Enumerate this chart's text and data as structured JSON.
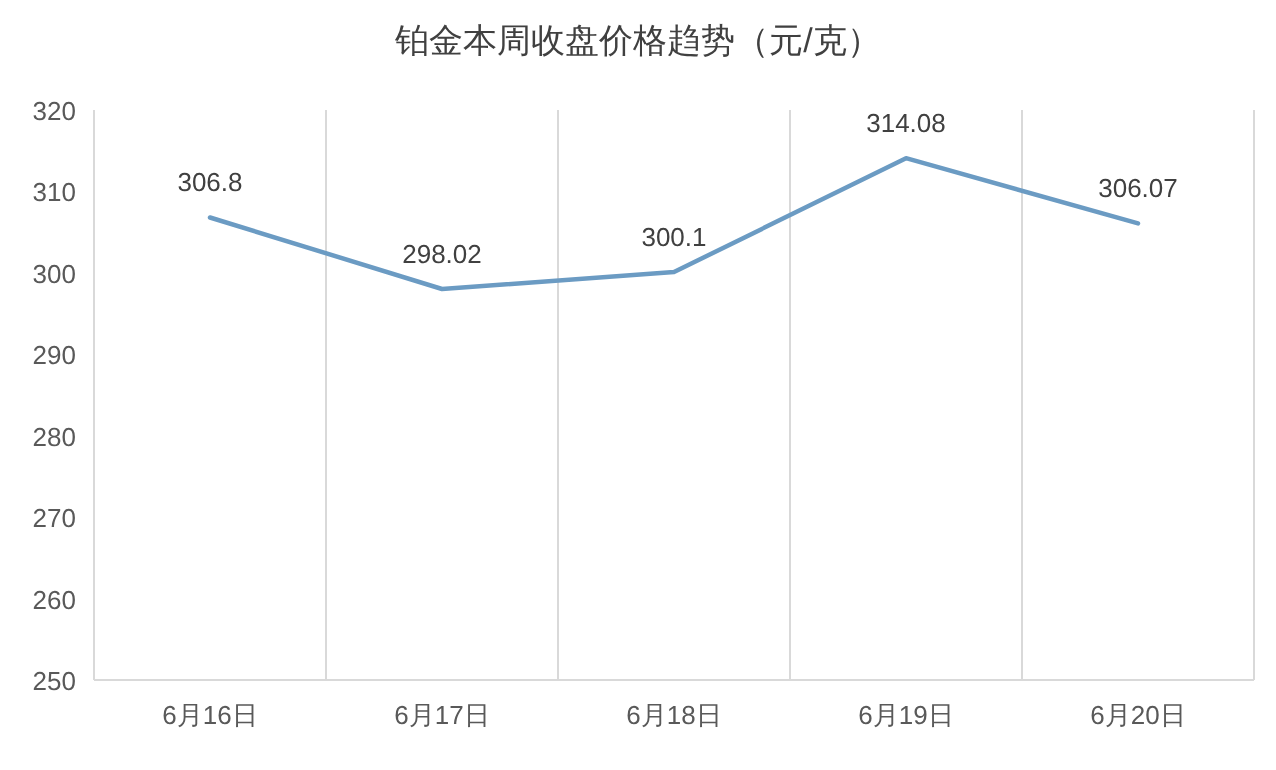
{
  "chart_data": {
    "type": "line",
    "title": "铂金本周收盘价格趋势（元/克）",
    "categories": [
      "6月16日",
      "6月17日",
      "6月18日",
      "6月19日",
      "6月20日"
    ],
    "series": [
      {
        "color": "#6b9bc3",
        "values": [
          306.8,
          298.02,
          300.1,
          314.08,
          306.07
        ]
      }
    ],
    "ylim": [
      250,
      320
    ],
    "yticks": [
      250,
      260,
      270,
      280,
      290,
      300,
      310,
      320
    ],
    "grid": "x",
    "data_labels": true,
    "marker": "none",
    "line_style": "solid"
  }
}
